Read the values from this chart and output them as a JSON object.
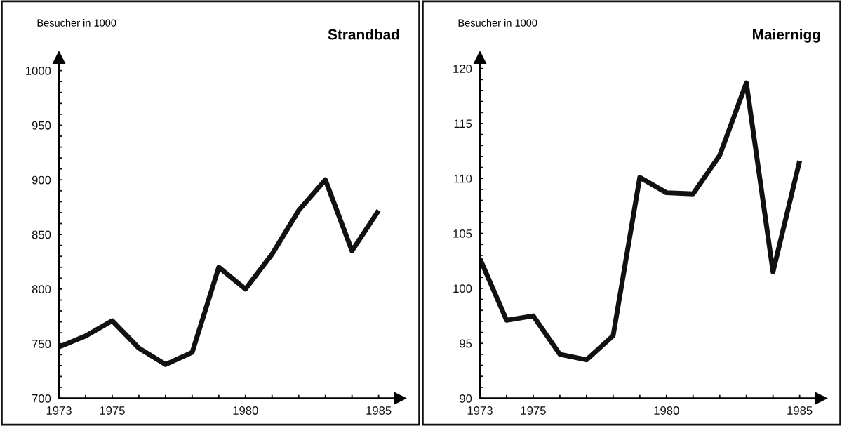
{
  "chart_data": [
    {
      "type": "line",
      "title": "Strandbad",
      "ylabel": "Besucher in 1000",
      "x": [
        1973,
        1974,
        1975,
        1976,
        1977,
        1978,
        1979,
        1980,
        1981,
        1982,
        1983,
        1984,
        1985
      ],
      "series": [
        {
          "color": "#111111",
          "values": [
            747,
            757,
            771,
            746,
            731,
            742,
            820,
            800,
            832,
            872,
            900,
            835,
            872
          ]
        }
      ],
      "xlim": [
        1973,
        1985.8
      ],
      "ylim": [
        700,
        1012
      ],
      "xticks": [
        1973,
        {
          "value": 1974,
          "label": null
        },
        1975,
        {
          "value": 1976,
          "label": null
        },
        {
          "value": 1977,
          "label": null
        },
        {
          "value": 1978,
          "label": null
        },
        {
          "value": 1979,
          "label": null
        },
        1980,
        {
          "value": 1981,
          "label": null
        },
        {
          "value": 1982,
          "label": null
        },
        {
          "value": 1983,
          "label": null
        },
        {
          "value": 1984,
          "label": null
        },
        1985
      ],
      "yticks": [
        700,
        {
          "value": 710,
          "label": null
        },
        {
          "value": 720,
          "label": null
        },
        {
          "value": 730,
          "label": null
        },
        {
          "value": 740,
          "label": null
        },
        750,
        {
          "value": 760,
          "label": null
        },
        {
          "value": 770,
          "label": null
        },
        {
          "value": 780,
          "label": null
        },
        {
          "value": 790,
          "label": null
        },
        800,
        {
          "value": 810,
          "label": null
        },
        {
          "value": 820,
          "label": null
        },
        {
          "value": 830,
          "label": null
        },
        {
          "value": 840,
          "label": null
        },
        850,
        {
          "value": 860,
          "label": null
        },
        {
          "value": 870,
          "label": null
        },
        {
          "value": 880,
          "label": null
        },
        {
          "value": 890,
          "label": null
        },
        900,
        {
          "value": 910,
          "label": null
        },
        {
          "value": 920,
          "label": null
        },
        {
          "value": 930,
          "label": null
        },
        {
          "value": 940,
          "label": null
        },
        950,
        {
          "value": 960,
          "label": null
        },
        {
          "value": 970,
          "label": null
        },
        {
          "value": 980,
          "label": null
        },
        {
          "value": 990,
          "label": null
        },
        1000
      ],
      "grid": false,
      "legend": false,
      "marker": "none",
      "line_style": "solid"
    },
    {
      "type": "line",
      "title": "Maiernigg",
      "ylabel": "Besucher in 1000",
      "x": [
        1973,
        1974,
        1975,
        1976,
        1977,
        1978,
        1979,
        1980,
        1981,
        1982,
        1983,
        1984,
        1985
      ],
      "series": [
        {
          "color": "#111111",
          "values": [
            102.7,
            97.1,
            97.5,
            94.0,
            93.5,
            95.7,
            110.1,
            108.7,
            108.6,
            112.1,
            118.7,
            101.5,
            111.6
          ]
        }
      ],
      "xlim": [
        1973,
        1985.8
      ],
      "ylim": [
        90,
        121
      ],
      "xticks": [
        1973,
        {
          "value": 1974,
          "label": null
        },
        1975,
        {
          "value": 1976,
          "label": null
        },
        {
          "value": 1977,
          "label": null
        },
        {
          "value": 1978,
          "label": null
        },
        {
          "value": 1979,
          "label": null
        },
        1980,
        {
          "value": 1981,
          "label": null
        },
        {
          "value": 1982,
          "label": null
        },
        {
          "value": 1983,
          "label": null
        },
        {
          "value": 1984,
          "label": null
        },
        1985
      ],
      "yticks": [
        90,
        {
          "value": 91,
          "label": null
        },
        {
          "value": 92,
          "label": null
        },
        {
          "value": 93,
          "label": null
        },
        {
          "value": 94,
          "label": null
        },
        95,
        {
          "value": 96,
          "label": null
        },
        {
          "value": 97,
          "label": null
        },
        {
          "value": 98,
          "label": null
        },
        {
          "value": 99,
          "label": null
        },
        100,
        {
          "value": 101,
          "label": null
        },
        {
          "value": 102,
          "label": null
        },
        {
          "value": 103,
          "label": null
        },
        {
          "value": 104,
          "label": null
        },
        105,
        {
          "value": 106,
          "label": null
        },
        {
          "value": 107,
          "label": null
        },
        {
          "value": 108,
          "label": null
        },
        {
          "value": 109,
          "label": null
        },
        110,
        {
          "value": 111,
          "label": null
        },
        {
          "value": 112,
          "label": null
        },
        {
          "value": 113,
          "label": null
        },
        {
          "value": 114,
          "label": null
        },
        115,
        {
          "value": 116,
          "label": null
        },
        {
          "value": 117,
          "label": null
        },
        {
          "value": 118,
          "label": null
        },
        {
          "value": 119,
          "label": null
        },
        120
      ],
      "grid": false,
      "legend": false,
      "marker": "none",
      "line_style": "solid"
    }
  ]
}
